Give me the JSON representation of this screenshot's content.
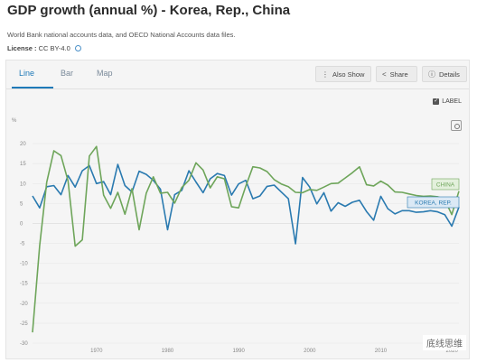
{
  "header": {
    "title": "GDP growth (annual %) - Korea, Rep., China",
    "subtitle": "World Bank national accounts data, and OECD National Accounts data files.",
    "license_label": "License :",
    "license_value": "CC BY-4.0"
  },
  "tabs": [
    {
      "label": "Line",
      "active": true
    },
    {
      "label": "Bar",
      "active": false
    },
    {
      "label": "Map",
      "active": false
    }
  ],
  "toolbar": {
    "also_show": "Also Show",
    "share": "Share",
    "details": "Details",
    "label_toggle": "LABEL"
  },
  "watermark": "底线思维",
  "chart_data": {
    "type": "line",
    "ylabel": "%",
    "ylim": [
      -30,
      25
    ],
    "yticks": [
      -30,
      -25,
      -20,
      -15,
      -10,
      -5,
      0,
      5,
      10,
      15,
      20
    ],
    "xlim": [
      1961,
      2021
    ],
    "xticks": [
      1970,
      1980,
      1990,
      2000,
      2010,
      2020
    ],
    "grid": true,
    "series": [
      {
        "name": "KOREA, REP.",
        "color": "#2a7ab0",
        "label_bg": "#dbe9f5",
        "x": [
          1961,
          1962,
          1963,
          1964,
          1965,
          1966,
          1967,
          1968,
          1969,
          1970,
          1971,
          1972,
          1973,
          1974,
          1975,
          1976,
          1977,
          1978,
          1979,
          1980,
          1981,
          1982,
          1983,
          1984,
          1985,
          1986,
          1987,
          1988,
          1989,
          1990,
          1991,
          1992,
          1993,
          1994,
          1995,
          1996,
          1997,
          1998,
          1999,
          2000,
          2001,
          2002,
          2003,
          2004,
          2005,
          2006,
          2007,
          2008,
          2009,
          2010,
          2011,
          2012,
          2013,
          2014,
          2015,
          2016,
          2017,
          2018,
          2019,
          2020,
          2021
        ],
        "values": [
          6.9,
          3.9,
          9.2,
          9.5,
          7.2,
          12.0,
          9.1,
          13.2,
          14.5,
          10.0,
          10.5,
          7.2,
          14.8,
          9.5,
          7.9,
          13.1,
          12.3,
          10.8,
          8.6,
          -1.6,
          7.2,
          8.3,
          13.2,
          10.4,
          7.7,
          11.2,
          12.5,
          12.0,
          7.1,
          9.9,
          10.8,
          6.2,
          6.9,
          9.3,
          9.6,
          7.9,
          6.2,
          -5.1,
          11.5,
          9.1,
          4.9,
          7.7,
          3.1,
          5.2,
          4.3,
          5.3,
          5.8,
          3.0,
          0.8,
          6.8,
          3.7,
          2.4,
          3.2,
          3.2,
          2.8,
          2.9,
          3.2,
          2.9,
          2.2,
          -0.7,
          4.1
        ]
      },
      {
        "name": "CHINA",
        "color": "#6ea55a",
        "label_bg": "#e3f0dc",
        "x": [
          1961,
          1962,
          1963,
          1964,
          1965,
          1966,
          1967,
          1968,
          1969,
          1970,
          1971,
          1972,
          1973,
          1974,
          1975,
          1976,
          1977,
          1978,
          1979,
          1980,
          1981,
          1982,
          1983,
          1984,
          1985,
          1986,
          1987,
          1988,
          1989,
          1990,
          1991,
          1992,
          1993,
          1994,
          1995,
          1996,
          1997,
          1998,
          1999,
          2000,
          2001,
          2002,
          2003,
          2004,
          2005,
          2006,
          2007,
          2008,
          2009,
          2010,
          2011,
          2012,
          2013,
          2014,
          2015,
          2016,
          2017,
          2018,
          2019,
          2020,
          2021
        ],
        "values": [
          -27.3,
          -5.6,
          10.3,
          18.2,
          17.0,
          10.7,
          -5.7,
          -4.1,
          16.9,
          19.3,
          7.1,
          3.8,
          7.8,
          2.3,
          8.7,
          -1.6,
          7.6,
          11.7,
          7.6,
          7.8,
          5.1,
          9.0,
          10.8,
          15.2,
          13.4,
          8.9,
          11.7,
          11.2,
          4.2,
          3.9,
          9.3,
          14.2,
          13.9,
          13.0,
          11.0,
          9.9,
          9.2,
          7.8,
          7.7,
          8.5,
          8.3,
          9.1,
          10.0,
          10.1,
          11.4,
          12.7,
          14.2,
          9.7,
          9.4,
          10.6,
          9.6,
          7.9,
          7.8,
          7.4,
          7.0,
          6.8,
          6.9,
          6.7,
          6.0,
          2.2,
          8.1
        ]
      }
    ]
  }
}
